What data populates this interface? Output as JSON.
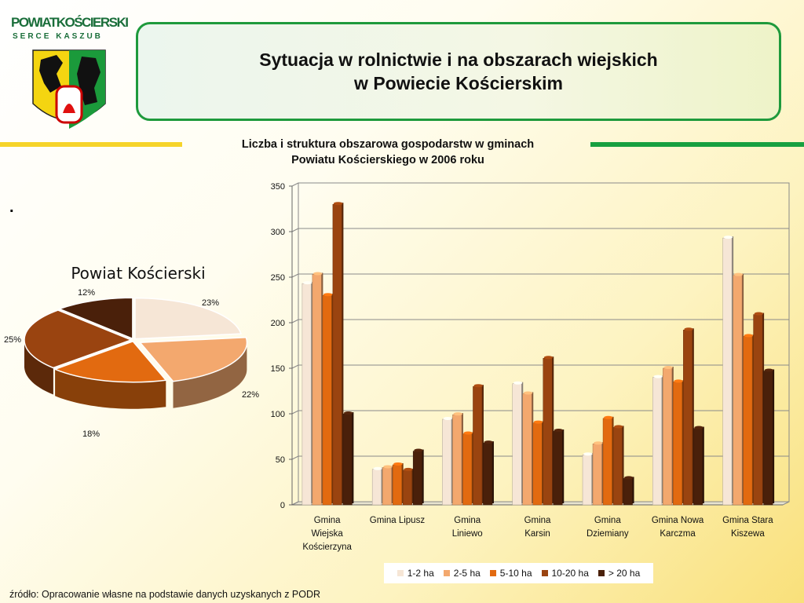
{
  "logo": {
    "line1": "POWIATKOŚCIERSKI",
    "line2": "SERCE KASZUB"
  },
  "header": {
    "title_line1": "Sytuacja w rolnictwie i na obszarach wiejskich",
    "title_line2": "w Powiecie Kościerskim"
  },
  "marker": ".",
  "source": "źródło: Opracowanie własne na podstawie danych uzyskanych z PODR",
  "colors": {
    "accent_green": "#1e9a3c",
    "accent_yellow": "#f6d42a"
  },
  "chart_data": [
    {
      "type": "pie",
      "title": "Powiat Kościerski",
      "categories": [
        "1-2 ha",
        "2-5 ha",
        "5-10 ha",
        "10-20 ha",
        "> 20 ha"
      ],
      "values": [
        23,
        22,
        18,
        25,
        12
      ],
      "value_labels": [
        "23%",
        "22%",
        "18%",
        "25%",
        "12%"
      ],
      "colors": [
        "#f6e6d6",
        "#f3a86e",
        "#e26a10",
        "#9a4410",
        "#4a200a"
      ]
    },
    {
      "type": "bar",
      "title_lines": [
        "Liczba i struktura obszarowa gospodarstw w gminach",
        "Powiatu Kościerskiego w 2006 roku"
      ],
      "categories": [
        [
          "Gmina",
          "Wiejska",
          "Kościerzyna"
        ],
        [
          "Gmina Lipusz"
        ],
        [
          "Gmina",
          "Liniewo"
        ],
        [
          "Gmina",
          "Karsin"
        ],
        [
          "Gmina",
          "Dziemiany"
        ],
        [
          "Gmina Nowa",
          "Karczma"
        ],
        [
          "Gmina Stara",
          "Kiszewa"
        ]
      ],
      "series": [
        {
          "name": "1-2 ha",
          "color": "#f6e6d6",
          "values": [
            243,
            39,
            94,
            133,
            55,
            140,
            293
          ]
        },
        {
          "name": "2-5 ha",
          "color": "#f3a86e",
          "values": [
            253,
            41,
            99,
            122,
            67,
            150,
            252
          ]
        },
        {
          "name": "5-10 ha",
          "color": "#e26a10",
          "values": [
            230,
            44,
            78,
            90,
            95,
            135,
            185
          ]
        },
        {
          "name": "10-20 ha",
          "color": "#9a4410",
          "values": [
            330,
            38,
            130,
            161,
            85,
            192,
            209
          ]
        },
        {
          "name": "> 20 ha",
          "color": "#4a200a",
          "values": [
            100,
            59,
            68,
            81,
            29,
            84,
            147
          ]
        }
      ],
      "ylim": [
        0,
        350
      ],
      "yticks": [
        0,
        50,
        100,
        150,
        200,
        250,
        300,
        350
      ],
      "grid": true,
      "legend_position": "bottom"
    }
  ]
}
